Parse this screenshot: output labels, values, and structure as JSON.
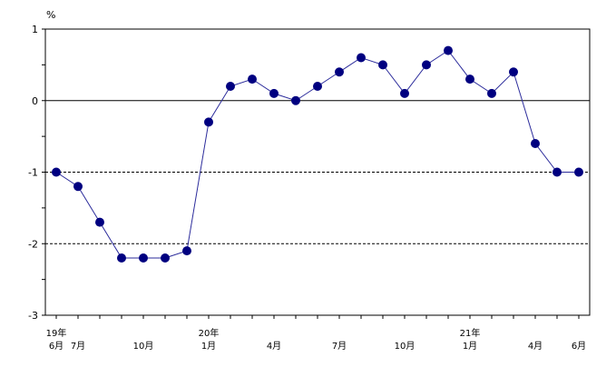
{
  "chart_data": {
    "type": "line",
    "unit_label": "%",
    "ylim": [
      -3,
      1
    ],
    "yticks": [
      {
        "value": 1,
        "label": "1"
      },
      {
        "value": 0,
        "label": "0"
      },
      {
        "value": -1,
        "label": "-1"
      },
      {
        "value": -2,
        "label": "-2"
      },
      {
        "value": -3,
        "label": "-3"
      }
    ],
    "gridlines": [
      {
        "value": 0,
        "style": "solid"
      },
      {
        "value": -1,
        "style": "dashed"
      },
      {
        "value": -2,
        "style": "dashed"
      }
    ],
    "points": [
      {
        "period": "19年6月",
        "value": -1.0
      },
      {
        "period": "19年7月",
        "value": -1.2
      },
      {
        "period": "19年8月",
        "value": -1.7
      },
      {
        "period": "19年9月",
        "value": -2.2
      },
      {
        "period": "19年10月",
        "value": -2.2
      },
      {
        "period": "19年11月",
        "value": -2.2
      },
      {
        "period": "19年12月",
        "value": -2.1
      },
      {
        "period": "20年1月",
        "value": -0.3
      },
      {
        "period": "20年2月",
        "value": 0.2
      },
      {
        "period": "20年3月",
        "value": 0.3
      },
      {
        "period": "20年4月",
        "value": 0.1
      },
      {
        "period": "20年5月",
        "value": 0.0
      },
      {
        "period": "20年6月",
        "value": 0.2
      },
      {
        "period": "20年7月",
        "value": 0.4
      },
      {
        "period": "20年8月",
        "value": 0.6
      },
      {
        "period": "20年9月",
        "value": 0.5
      },
      {
        "period": "20年10月",
        "value": 0.1
      },
      {
        "period": "20年11月",
        "value": 0.5
      },
      {
        "period": "20年12月",
        "value": 0.7
      },
      {
        "period": "21年1月",
        "value": 0.3
      },
      {
        "period": "21年2月",
        "value": 0.1
      },
      {
        "period": "21年3月",
        "value": 0.4
      },
      {
        "period": "21年4月",
        "value": -0.6
      },
      {
        "period": "21年5月",
        "value": -1.0
      },
      {
        "period": "21年6月",
        "value": -1.0
      }
    ],
    "x_labels": [
      {
        "index": 0,
        "year": "19年",
        "month": "6月"
      },
      {
        "index": 1,
        "year": "",
        "month": "7月"
      },
      {
        "index": 4,
        "year": "",
        "month": "10月"
      },
      {
        "index": 7,
        "year": "20年",
        "month": "1月"
      },
      {
        "index": 10,
        "year": "",
        "month": "4月"
      },
      {
        "index": 13,
        "year": "",
        "month": "7月"
      },
      {
        "index": 16,
        "year": "",
        "month": "10月"
      },
      {
        "index": 19,
        "year": "21年",
        "month": "1月"
      },
      {
        "index": 22,
        "year": "",
        "month": "4月"
      },
      {
        "index": 24,
        "year": "",
        "month": "6月"
      }
    ],
    "colors": {
      "line": "#2b2b9b",
      "marker": "#000080",
      "axis": "#000000",
      "grid": "#000000"
    }
  }
}
